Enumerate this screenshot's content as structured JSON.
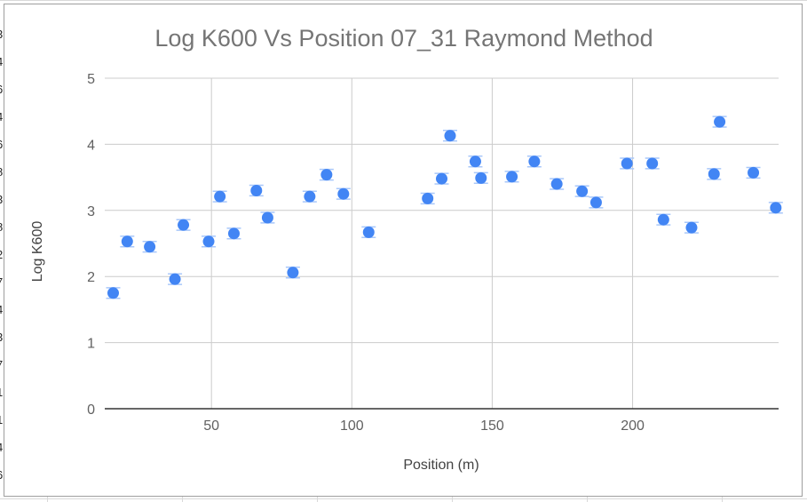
{
  "sheet": {
    "left_edge_fragments": [
      "3",
      "4",
      "6",
      "4",
      "6",
      "8",
      "3",
      "8",
      "2",
      "7",
      "4",
      "3",
      "7",
      "1",
      "1",
      "4",
      "6"
    ]
  },
  "colors": {
    "point": "#4285f4",
    "error_bar": "#a8c7fa",
    "grid": "#cccccc",
    "axis": "#333333",
    "text": "#616161",
    "title": "#757575"
  },
  "chart_data": {
    "type": "scatter",
    "title": "Log K600 Vs Position 07_31 Raymond Method",
    "xlabel": "Position (m)",
    "ylabel": "Log K600",
    "xlim": [
      12,
      252
    ],
    "ylim": [
      0,
      5
    ],
    "x_ticks": [
      50,
      100,
      150,
      200
    ],
    "y_ticks": [
      0,
      1,
      2,
      3,
      4,
      5
    ],
    "grid": true,
    "legend": "none",
    "error_bar": 0.08,
    "series": [
      {
        "x": [
          15,
          20,
          28,
          37,
          40,
          49,
          53,
          58,
          66,
          70,
          79,
          85,
          91,
          97,
          106,
          127,
          132,
          135,
          144,
          146,
          157,
          165,
          173,
          182,
          187,
          198,
          207,
          211,
          221,
          229,
          231,
          243,
          251
        ],
        "y": [
          1.75,
          2.53,
          2.45,
          1.96,
          2.78,
          2.53,
          3.21,
          2.65,
          3.3,
          2.89,
          2.06,
          3.21,
          3.54,
          3.25,
          2.67,
          3.18,
          3.48,
          4.13,
          3.74,
          3.49,
          3.51,
          3.74,
          3.4,
          3.29,
          3.12,
          3.71,
          3.71,
          2.86,
          2.74,
          3.55,
          4.34,
          3.57,
          3.04
        ]
      }
    ]
  }
}
